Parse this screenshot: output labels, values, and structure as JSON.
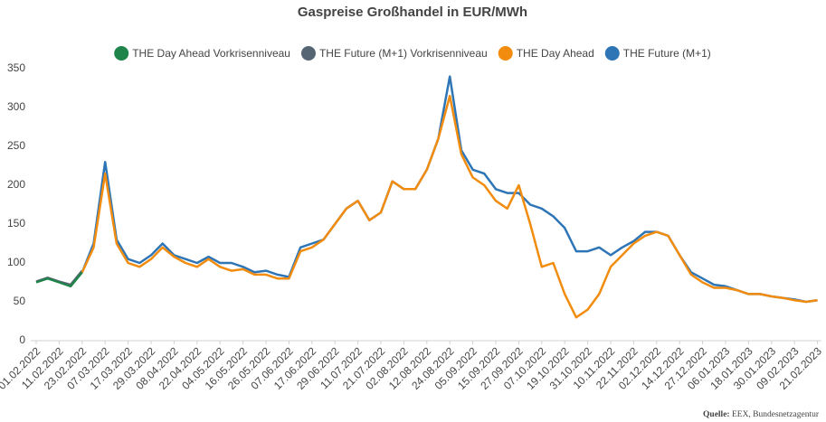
{
  "chart_data": {
    "type": "line",
    "title": "Gaspreise Großhandel in EUR/MWh",
    "source_label": "Quelle:",
    "source": "EEX, Bundesnetzagentur",
    "categories": [
      "01.02.2022",
      null,
      "11.02.2022",
      null,
      "23.02.2022",
      null,
      "07.03.2022",
      null,
      "17.03.2022",
      null,
      "29.03.2022",
      null,
      "08.04.2022",
      null,
      "22.04.2022",
      null,
      "04.05.2022",
      null,
      "16.05.2022",
      null,
      "26.05.2022",
      null,
      "07.06.2022",
      null,
      "17.06.2022",
      null,
      "29.06.2022",
      null,
      "11.07.2022",
      null,
      "21.07.2022",
      null,
      "02.08.2022",
      null,
      "12.08.2022",
      null,
      "24.08.2022",
      null,
      "05.09.2022",
      null,
      "15.09.2022",
      null,
      "27.09.2022",
      null,
      "07.10.2022",
      null,
      "19.10.2022",
      null,
      "31.10.2022",
      null,
      "10.11.2022",
      null,
      "22.11.2022",
      null,
      "02.12.2022",
      null,
      "14.12.2022",
      null,
      "27.12.2022",
      null,
      "06.01.2023",
      null,
      "18.01.2023",
      null,
      "30.01.2023",
      null,
      "09.02.2023",
      null,
      "21.02.2023"
    ],
    "series": [
      {
        "name": "THE Future (M+1) Vorkrisenniveau",
        "color": "#566573",
        "values": [
          76,
          81,
          76,
          72,
          90,
          null,
          null,
          null,
          null,
          null,
          null,
          null,
          null,
          null,
          null,
          null,
          null,
          null,
          null,
          null,
          null,
          null,
          null,
          null,
          null,
          null,
          null,
          null,
          null,
          null,
          null,
          null,
          null,
          null,
          null,
          null,
          null,
          null,
          null,
          null,
          null,
          null,
          null,
          null,
          null,
          null,
          null,
          null,
          null,
          null,
          null,
          null,
          null,
          null,
          null,
          null,
          null,
          null,
          null,
          null,
          null,
          null,
          null,
          null,
          null,
          null,
          null,
          null,
          null
        ]
      },
      {
        "name": "THE Day Ahead Vorkrisenniveau",
        "color": "#1e8449",
        "values": [
          75,
          80,
          75,
          70,
          88,
          null,
          null,
          null,
          null,
          null,
          null,
          null,
          null,
          null,
          null,
          null,
          null,
          null,
          null,
          null,
          null,
          null,
          null,
          null,
          null,
          null,
          null,
          null,
          null,
          null,
          null,
          null,
          null,
          null,
          null,
          null,
          null,
          null,
          null,
          null,
          null,
          null,
          null,
          null,
          null,
          null,
          null,
          null,
          null,
          null,
          null,
          null,
          null,
          null,
          null,
          null,
          null,
          null,
          null,
          null,
          null,
          null,
          null,
          null,
          null,
          null,
          null,
          null,
          null
        ]
      },
      {
        "name": "THE Future (M+1)",
        "color": "#2e75b6",
        "values": [
          null,
          null,
          null,
          null,
          88,
          125,
          230,
          130,
          105,
          100,
          110,
          125,
          110,
          105,
          100,
          108,
          100,
          100,
          95,
          88,
          90,
          85,
          82,
          120,
          125,
          130,
          150,
          170,
          180,
          155,
          165,
          205,
          195,
          195,
          220,
          260,
          340,
          245,
          220,
          215,
          195,
          190,
          190,
          175,
          170,
          160,
          145,
          115,
          115,
          120,
          110,
          120,
          128,
          140,
          140,
          135,
          110,
          88,
          80,
          72,
          70,
          65,
          60,
          60,
          57,
          55,
          53,
          50,
          52
        ]
      },
      {
        "name": "THE Day Ahead",
        "color": "#f28c0f",
        "values": [
          null,
          null,
          null,
          null,
          88,
          120,
          215,
          125,
          100,
          95,
          105,
          120,
          108,
          100,
          95,
          105,
          95,
          90,
          92,
          85,
          85,
          80,
          80,
          115,
          120,
          130,
          150,
          170,
          180,
          155,
          165,
          205,
          195,
          195,
          220,
          260,
          315,
          240,
          210,
          200,
          180,
          170,
          200,
          150,
          95,
          100,
          60,
          30,
          40,
          60,
          95,
          110,
          125,
          135,
          140,
          135,
          110,
          85,
          75,
          68,
          68,
          65,
          60,
          60,
          57,
          55,
          52,
          50,
          52
        ]
      }
    ],
    "ylim": [
      0,
      350
    ],
    "yticks": [
      0,
      50,
      100,
      150,
      200,
      250,
      300,
      350
    ]
  }
}
